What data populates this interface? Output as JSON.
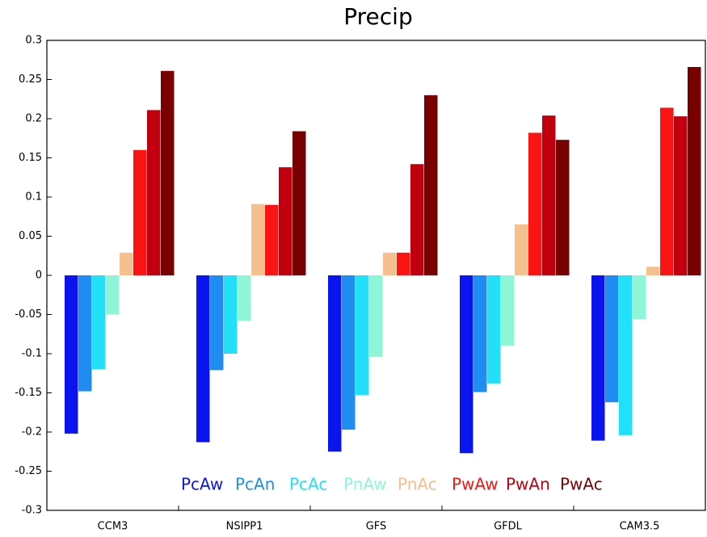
{
  "chart_data": {
    "type": "bar",
    "title": "Precip",
    "categories": [
      "CCM3",
      "NSIPP1",
      "GFS",
      "GFDL",
      "CAM3.5"
    ],
    "series": [
      {
        "name": "PcAw",
        "color": "#0a14ee",
        "values": [
          -0.202,
          -0.213,
          -0.225,
          -0.227,
          -0.211
        ]
      },
      {
        "name": "PcAn",
        "color": "#1e8cf0",
        "values": [
          -0.148,
          -0.121,
          -0.197,
          -0.149,
          -0.162
        ]
      },
      {
        "name": "PcAc",
        "color": "#22e0f8",
        "values": [
          -0.12,
          -0.1,
          -0.153,
          -0.138,
          -0.204
        ]
      },
      {
        "name": "PnAw",
        "color": "#8ef6d6",
        "values": [
          -0.05,
          -0.058,
          -0.104,
          -0.09,
          -0.056
        ]
      },
      {
        "name": "PnAc",
        "color": "#f6bf8e",
        "values": [
          0.029,
          0.091,
          0.029,
          0.065,
          0.011
        ]
      },
      {
        "name": "PwAw",
        "color": "#fa1414",
        "values": [
          0.16,
          0.09,
          0.029,
          0.182,
          0.214
        ]
      },
      {
        "name": "PwAn",
        "color": "#c0000e",
        "values": [
          0.211,
          0.138,
          0.142,
          0.204,
          0.203
        ]
      },
      {
        "name": "PwAc",
        "color": "#780000",
        "values": [
          0.261,
          0.184,
          0.23,
          0.173,
          0.266
        ]
      }
    ],
    "ylim": [
      -0.3,
      0.3
    ],
    "yticks": [
      -0.3,
      -0.25,
      -0.2,
      -0.15,
      -0.1,
      -0.05,
      0,
      0.05,
      0.1,
      0.15,
      0.2,
      0.25,
      0.3
    ],
    "grid": false
  }
}
